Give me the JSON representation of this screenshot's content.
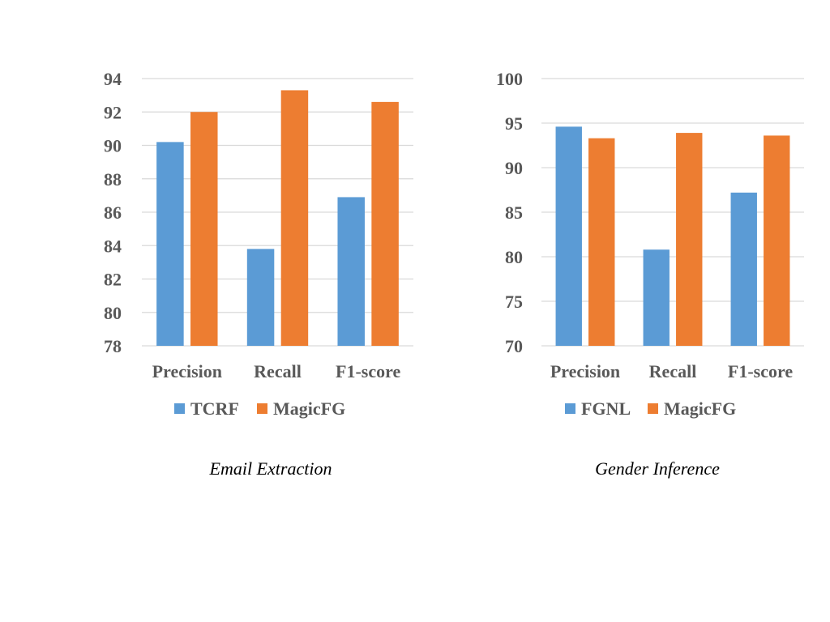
{
  "colors": {
    "series1": "#5b9bd5",
    "series2": "#ed7d31",
    "grid": "#d9d9d9",
    "axis_text": "#595959"
  },
  "chart_data": [
    {
      "type": "bar",
      "caption": "Email Extraction",
      "categories": [
        "Precision",
        "Recall",
        "F1-score"
      ],
      "series": [
        {
          "name": "TCRF",
          "color": "#5b9bd5",
          "values": [
            90.2,
            83.8,
            86.9
          ]
        },
        {
          "name": "MagicFG",
          "color": "#ed7d31",
          "values": [
            92.0,
            93.3,
            92.6
          ]
        }
      ],
      "ylim": [
        78,
        94
      ],
      "yticks": [
        78,
        80,
        82,
        84,
        86,
        88,
        90,
        92,
        94
      ],
      "grid": true,
      "legend": "bottom"
    },
    {
      "type": "bar",
      "caption": "Gender Inference",
      "categories": [
        "Precision",
        "Recall",
        "F1-score"
      ],
      "series": [
        {
          "name": "FGNL",
          "color": "#5b9bd5",
          "values": [
            94.6,
            80.8,
            87.2
          ]
        },
        {
          "name": "MagicFG",
          "color": "#ed7d31",
          "values": [
            93.3,
            93.9,
            93.6
          ]
        }
      ],
      "ylim": [
        70,
        100
      ],
      "yticks": [
        70,
        75,
        80,
        85,
        90,
        95,
        100
      ],
      "grid": true,
      "legend": "bottom"
    }
  ]
}
